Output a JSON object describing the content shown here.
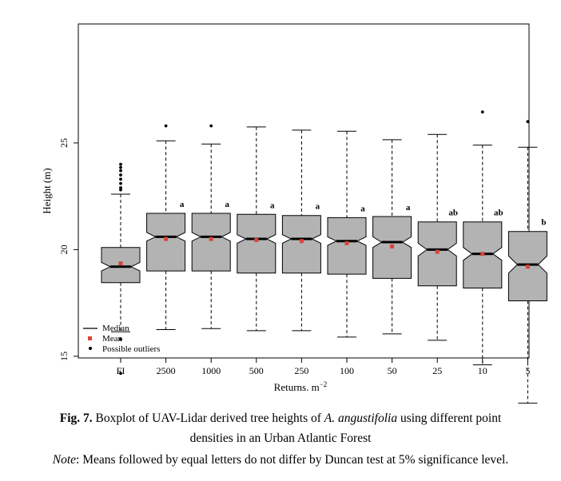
{
  "chart_data": {
    "type": "boxplot",
    "ylabel": "Height (m)",
    "xlabel": "Returns. m",
    "xlabel_superscript": "−2",
    "ylim": [
      11.3,
      27.0
    ],
    "yticks": [
      15,
      20,
      25
    ],
    "notched": true,
    "grid": false,
    "legend_position": "bottom-left",
    "legend": [
      {
        "label": "Median",
        "symbol": "line"
      },
      {
        "label": "Mean",
        "symbol": "red-square"
      },
      {
        "label": "Possible outliers",
        "symbol": "dot"
      }
    ],
    "categories": [
      "FI",
      "2500",
      "1000",
      "500",
      "250",
      "100",
      "50",
      "25",
      "10",
      "5"
    ],
    "boxes": [
      {
        "whisker_low": 16.15,
        "q1": 18.45,
        "median": 19.2,
        "q3": 20.1,
        "whisker_high": 22.6,
        "mean": 19.35,
        "notch_low": 19.0,
        "notch_high": 19.4,
        "outliers": [
          22.8,
          22.9,
          23.1,
          23.3,
          23.5,
          23.7,
          23.85,
          24.0,
          15.8,
          14.2
        ],
        "letter": ""
      },
      {
        "whisker_low": 16.25,
        "q1": 19.0,
        "median": 20.6,
        "q3": 21.7,
        "whisker_high": 25.1,
        "mean": 20.5,
        "notch_low": 20.4,
        "notch_high": 20.8,
        "outliers": [
          25.8
        ],
        "letter": "a"
      },
      {
        "whisker_low": 16.3,
        "q1": 19.0,
        "median": 20.6,
        "q3": 21.7,
        "whisker_high": 24.95,
        "mean": 20.5,
        "notch_low": 20.4,
        "notch_high": 20.8,
        "outliers": [
          25.8
        ],
        "letter": "a"
      },
      {
        "whisker_low": 16.2,
        "q1": 18.9,
        "median": 20.5,
        "q3": 21.65,
        "whisker_high": 25.75,
        "mean": 20.45,
        "notch_low": 20.3,
        "notch_high": 20.7,
        "outliers": [],
        "letter": "a"
      },
      {
        "whisker_low": 16.2,
        "q1": 18.9,
        "median": 20.5,
        "q3": 21.6,
        "whisker_high": 25.6,
        "mean": 20.4,
        "notch_low": 20.3,
        "notch_high": 20.7,
        "outliers": [],
        "letter": "a"
      },
      {
        "whisker_low": 15.9,
        "q1": 18.85,
        "median": 20.4,
        "q3": 21.5,
        "whisker_high": 25.55,
        "mean": 20.3,
        "notch_low": 20.2,
        "notch_high": 20.6,
        "outliers": [],
        "letter": "a"
      },
      {
        "whisker_low": 16.05,
        "q1": 18.65,
        "median": 20.35,
        "q3": 21.55,
        "whisker_high": 25.15,
        "mean": 20.15,
        "notch_low": 20.1,
        "notch_high": 20.6,
        "outliers": [],
        "letter": "a"
      },
      {
        "whisker_low": 15.75,
        "q1": 18.3,
        "median": 20.0,
        "q3": 21.3,
        "whisker_high": 25.4,
        "mean": 19.9,
        "notch_low": 19.7,
        "notch_high": 20.3,
        "outliers": [],
        "letter": "ab"
      },
      {
        "whisker_low": 14.6,
        "q1": 18.2,
        "median": 19.8,
        "q3": 21.3,
        "whisker_high": 24.9,
        "mean": 19.8,
        "notch_low": 19.5,
        "notch_high": 20.1,
        "outliers": [
          26.45
        ],
        "letter": "ab"
      },
      {
        "whisker_low": 12.8,
        "q1": 17.6,
        "median": 19.3,
        "q3": 20.85,
        "whisker_high": 24.8,
        "mean": 19.2,
        "notch_low": 18.9,
        "notch_high": 19.7,
        "outliers": [
          26.0,
          11.8
        ],
        "letter": "b"
      }
    ],
    "colors": {
      "box_fill": "#b3b3b3",
      "mean_marker": "#d9433a",
      "ink": "#000000"
    }
  },
  "caption": {
    "fig_label": "Fig. 7.",
    "line1_before": " Boxplot of UAV-Lidar derived tree heights of ",
    "species": "A. angustifolia",
    "line1_after": " using different point",
    "line2": "densities in an Urban Atlantic Forest",
    "note_label": "Note",
    "note_text": ": Means followed by equal letters do not differ by Duncan test at 5% significance level."
  }
}
